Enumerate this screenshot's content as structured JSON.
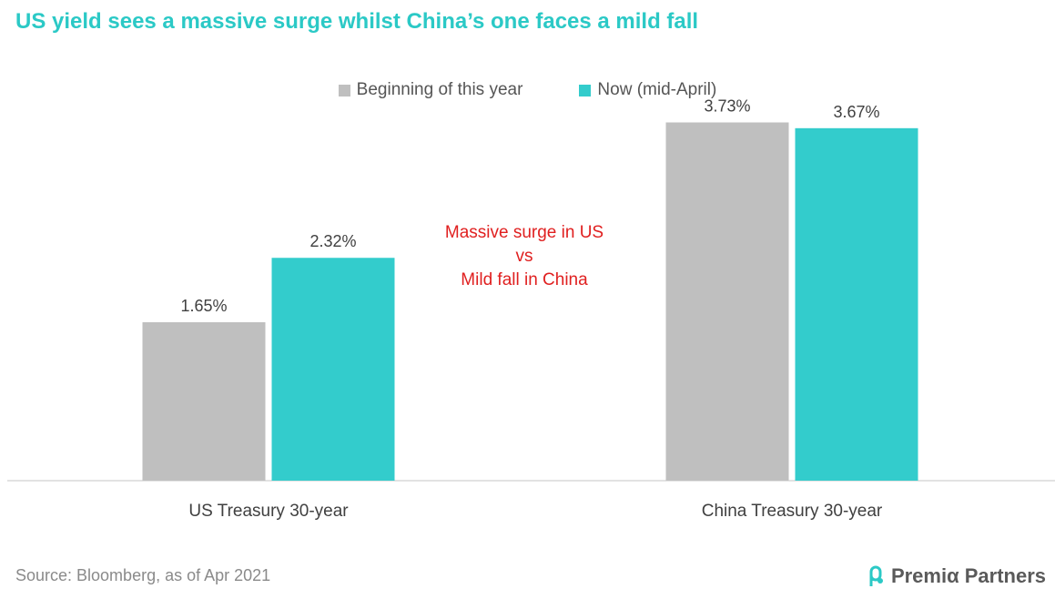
{
  "title": "US yield sees a massive surge whilst China’s one faces a mild fall",
  "source": "Source: Bloomberg, as of Apr 2021",
  "logo_text": "Premiα Partners",
  "colors": {
    "title": "#2bc9c6",
    "series_begin": "#bfbfbf",
    "series_now": "#33cccc",
    "annotation": "#e02020",
    "text": "#404040",
    "axis": "#d9d9d9"
  },
  "chart_data": {
    "type": "bar",
    "categories": [
      "US Treasury 30-year",
      "China Treasury 30-year"
    ],
    "series": [
      {
        "name": "Beginning of this year",
        "values": [
          1.65,
          3.73
        ],
        "labels": [
          "1.65%",
          "3.73%"
        ]
      },
      {
        "name": "Now (mid-April)",
        "values": [
          2.32,
          3.67
        ],
        "labels": [
          "2.32%",
          "3.67%"
        ]
      }
    ],
    "ylim": [
      0,
      4
    ],
    "annotation": [
      "Massive surge in US",
      "vs",
      "Mild fall in China"
    ],
    "legend_position": "top-center",
    "grid": false
  }
}
